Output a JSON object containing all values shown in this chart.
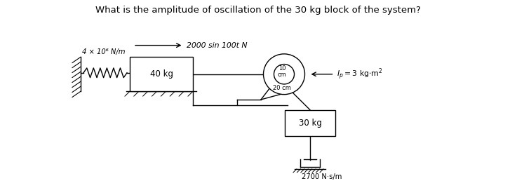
{
  "title": "What is the amplitude of oscillation of the 30 kg block of the system?",
  "title_fontsize": 9.5,
  "bg_color": "#ffffff",
  "spring_label": "4 × 10⁶ N/m",
  "block40_label": "40 kg",
  "force_label": "2000 sin 100t N",
  "block30_label": "30 kg",
  "damper_label": "2700 N·s/m",
  "inertia_label": "I_p = 3 kg·m²",
  "inner_label": "10\ncm",
  "outer_label": "20 cm",
  "xlim": [
    0,
    7.37
  ],
  "ylim": [
    0,
    2.58
  ]
}
